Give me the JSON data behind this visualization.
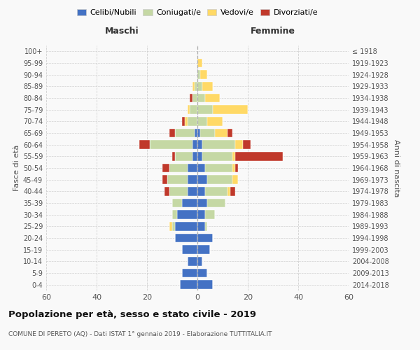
{
  "age_groups": [
    "100+",
    "95-99",
    "90-94",
    "85-89",
    "80-84",
    "75-79",
    "70-74",
    "65-69",
    "60-64",
    "55-59",
    "50-54",
    "45-49",
    "40-44",
    "35-39",
    "30-34",
    "25-29",
    "20-24",
    "15-19",
    "10-14",
    "5-9",
    "0-4"
  ],
  "birth_years": [
    "≤ 1918",
    "1919-1923",
    "1924-1928",
    "1929-1933",
    "1934-1938",
    "1939-1943",
    "1944-1948",
    "1949-1953",
    "1954-1958",
    "1959-1963",
    "1964-1968",
    "1969-1973",
    "1974-1978",
    "1979-1983",
    "1984-1988",
    "1989-1993",
    "1994-1998",
    "1999-2003",
    "2004-2008",
    "2009-2013",
    "2014-2018"
  ],
  "male": {
    "celibi": [
      0,
      0,
      0,
      0,
      0,
      0,
      0,
      1,
      2,
      2,
      4,
      4,
      4,
      6,
      8,
      9,
      9,
      6,
      4,
      6,
      7
    ],
    "coniugati": [
      0,
      0,
      0,
      1,
      2,
      3,
      4,
      8,
      17,
      7,
      7,
      8,
      7,
      4,
      2,
      1,
      0,
      0,
      0,
      0,
      0
    ],
    "vedovi": [
      0,
      0,
      0,
      1,
      0,
      1,
      1,
      0,
      0,
      0,
      0,
      0,
      0,
      0,
      0,
      1,
      0,
      0,
      0,
      0,
      0
    ],
    "divorziati": [
      0,
      0,
      0,
      0,
      1,
      0,
      1,
      2,
      4,
      1,
      3,
      2,
      2,
      0,
      0,
      0,
      0,
      0,
      0,
      0,
      0
    ]
  },
  "female": {
    "nubili": [
      0,
      0,
      0,
      0,
      0,
      0,
      0,
      1,
      2,
      2,
      3,
      4,
      3,
      4,
      3,
      3,
      6,
      5,
      2,
      4,
      6
    ],
    "coniugate": [
      0,
      0,
      1,
      2,
      3,
      6,
      4,
      6,
      13,
      12,
      11,
      10,
      9,
      7,
      4,
      1,
      0,
      0,
      0,
      0,
      0
    ],
    "vedove": [
      0,
      2,
      3,
      4,
      6,
      14,
      6,
      5,
      3,
      1,
      1,
      2,
      1,
      0,
      0,
      0,
      0,
      0,
      0,
      0,
      0
    ],
    "divorziate": [
      0,
      0,
      0,
      0,
      0,
      0,
      0,
      2,
      3,
      19,
      1,
      0,
      2,
      0,
      0,
      0,
      0,
      0,
      0,
      0,
      0
    ]
  },
  "colors": {
    "celibi": "#4472C4",
    "coniugati": "#C5D8A4",
    "vedovi": "#FFD966",
    "divorziati": "#C0392B"
  },
  "legend_labels": [
    "Celibi/Nubili",
    "Coniugati/e",
    "Vedovi/e",
    "Divorziati/e"
  ],
  "legend_colors": [
    "#4472C4",
    "#C5D8A4",
    "#FFD966",
    "#C0392B"
  ],
  "title": "Popolazione per età, sesso e stato civile - 2019",
  "subtitle": "COMUNE DI PERETO (AQ) - Dati ISTAT 1° gennaio 2019 - Elaborazione TUTTITALIA.IT",
  "ylabel_left": "Fasce di età",
  "ylabel_right": "Anni di nascita",
  "xlabel_left": "Maschi",
  "xlabel_right": "Femmine",
  "xlim": 60,
  "background_color": "#f9f9f9",
  "grid_color": "#cccccc"
}
